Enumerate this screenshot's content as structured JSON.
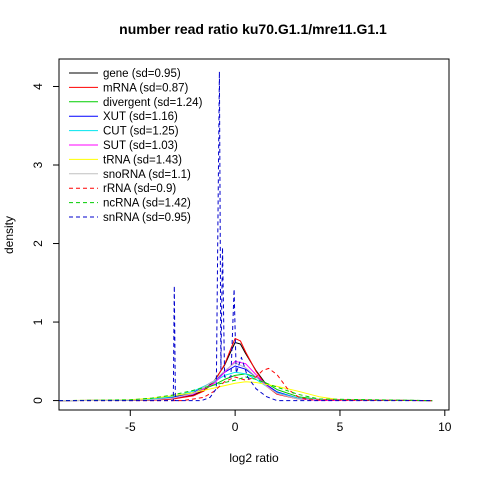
{
  "chart_data": {
    "type": "line",
    "title": "number read ratio ku70.G1.1/mre11.G1.1",
    "xlabel": "log2 ratio",
    "ylabel": "density",
    "xlim": [
      -8.4,
      10.2
    ],
    "ylim": [
      -0.12,
      4.35
    ],
    "x_ticks": [
      -5,
      0,
      5,
      10
    ],
    "y_ticks": [
      0,
      1,
      2,
      3,
      4
    ],
    "grid": false,
    "legend_position": "top-left",
    "series": [
      {
        "name": "gene (sd=0.95)",
        "color": "#000000",
        "dash": "solid",
        "points": [
          [
            -8.4,
            0
          ],
          [
            -4,
            0.005
          ],
          [
            -3,
            0.02
          ],
          [
            -2,
            0.07
          ],
          [
            -1.5,
            0.13
          ],
          [
            -1,
            0.25
          ],
          [
            -0.5,
            0.45
          ],
          [
            -0.25,
            0.6
          ],
          [
            0,
            0.74
          ],
          [
            0.25,
            0.72
          ],
          [
            0.5,
            0.6
          ],
          [
            1,
            0.38
          ],
          [
            1.5,
            0.2
          ],
          [
            2,
            0.1
          ],
          [
            3,
            0.03
          ],
          [
            4,
            0.01
          ],
          [
            9.4,
            0
          ]
        ]
      },
      {
        "name": "mRNA (sd=0.87)",
        "color": "#ff0000",
        "dash": "solid",
        "points": [
          [
            -8.4,
            0
          ],
          [
            -4,
            0.005
          ],
          [
            -3,
            0.02
          ],
          [
            -2,
            0.06
          ],
          [
            -1.5,
            0.12
          ],
          [
            -1,
            0.24
          ],
          [
            -0.5,
            0.46
          ],
          [
            -0.25,
            0.63
          ],
          [
            0,
            0.79
          ],
          [
            0.25,
            0.76
          ],
          [
            0.5,
            0.62
          ],
          [
            1,
            0.37
          ],
          [
            1.5,
            0.18
          ],
          [
            2,
            0.08
          ],
          [
            3,
            0.02
          ],
          [
            4,
            0.005
          ],
          [
            9.4,
            0
          ]
        ]
      },
      {
        "name": "divergent (sd=1.24)",
        "color": "#00cd00",
        "dash": "solid",
        "points": [
          [
            -8.4,
            0
          ],
          [
            -5,
            0.005
          ],
          [
            -4,
            0.02
          ],
          [
            -3,
            0.05
          ],
          [
            -2,
            0.1
          ],
          [
            -1,
            0.2
          ],
          [
            -0.5,
            0.27
          ],
          [
            0,
            0.32
          ],
          [
            0.5,
            0.34
          ],
          [
            1,
            0.3
          ],
          [
            1.5,
            0.22
          ],
          [
            2,
            0.14
          ],
          [
            3,
            0.05
          ],
          [
            4,
            0.015
          ],
          [
            9.4,
            0
          ]
        ]
      },
      {
        "name": "XUT (sd=1.16)",
        "color": "#0000ff",
        "dash": "solid",
        "points": [
          [
            -8.4,
            0
          ],
          [
            -5,
            0.005
          ],
          [
            -4,
            0.015
          ],
          [
            -3,
            0.04
          ],
          [
            -2,
            0.1
          ],
          [
            -1,
            0.25
          ],
          [
            -0.5,
            0.36
          ],
          [
            0,
            0.44
          ],
          [
            0.5,
            0.4
          ],
          [
            1,
            0.3
          ],
          [
            1.5,
            0.2
          ],
          [
            2,
            0.11
          ],
          [
            3,
            0.03
          ],
          [
            4,
            0.01
          ],
          [
            9.4,
            0
          ]
        ]
      },
      {
        "name": "CUT (sd=1.25)",
        "color": "#00e5ee",
        "dash": "solid",
        "points": [
          [
            -8.4,
            0
          ],
          [
            -5,
            0.005
          ],
          [
            -4,
            0.02
          ],
          [
            -3,
            0.05
          ],
          [
            -2,
            0.12
          ],
          [
            -1,
            0.24
          ],
          [
            -0.5,
            0.32
          ],
          [
            0,
            0.36
          ],
          [
            0.5,
            0.34
          ],
          [
            1,
            0.27
          ],
          [
            1.5,
            0.18
          ],
          [
            2,
            0.1
          ],
          [
            3,
            0.03
          ],
          [
            4,
            0.01
          ],
          [
            9.4,
            0
          ]
        ]
      },
      {
        "name": "SUT (sd=1.03)",
        "color": "#ff00ff",
        "dash": "solid",
        "points": [
          [
            -8.4,
            0
          ],
          [
            -4,
            0.008
          ],
          [
            -3,
            0.03
          ],
          [
            -2,
            0.08
          ],
          [
            -1,
            0.22
          ],
          [
            -0.5,
            0.36
          ],
          [
            0,
            0.5
          ],
          [
            0.5,
            0.47
          ],
          [
            1,
            0.33
          ],
          [
            1.5,
            0.19
          ],
          [
            2,
            0.09
          ],
          [
            3,
            0.02
          ],
          [
            4,
            0.005
          ],
          [
            9.4,
            0
          ]
        ]
      },
      {
        "name": "tRNA (sd=1.43)",
        "color": "#ffff00",
        "dash": "solid",
        "points": [
          [
            -8.4,
            0
          ],
          [
            -5,
            0.01
          ],
          [
            -4,
            0.03
          ],
          [
            -3,
            0.06
          ],
          [
            -2,
            0.1
          ],
          [
            -1,
            0.16
          ],
          [
            0,
            0.22
          ],
          [
            0.5,
            0.24
          ],
          [
            1,
            0.23
          ],
          [
            2,
            0.18
          ],
          [
            3,
            0.12
          ],
          [
            4,
            0.05
          ],
          [
            5,
            0.01
          ],
          [
            9.4,
            0
          ]
        ]
      },
      {
        "name": "snoRNA (sd=1.1)",
        "color": "#c0c0c0",
        "dash": "solid",
        "points": [
          [
            -8.4,
            0
          ],
          [
            -4,
            0.008
          ],
          [
            -3,
            0.03
          ],
          [
            -2,
            0.09
          ],
          [
            -1,
            0.25
          ],
          [
            -0.5,
            0.38
          ],
          [
            0,
            0.48
          ],
          [
            0.5,
            0.42
          ],
          [
            1,
            0.3
          ],
          [
            1.5,
            0.18
          ],
          [
            2,
            0.09
          ],
          [
            3,
            0.02
          ],
          [
            9.4,
            0
          ]
        ]
      },
      {
        "name": "rRNA (sd=0.9)",
        "color": "#ff0000",
        "dash": "dashed",
        "points": [
          [
            -8.4,
            0
          ],
          [
            -2.5,
            0
          ],
          [
            -1.5,
            0.04
          ],
          [
            -1,
            0.12
          ],
          [
            -0.5,
            0.24
          ],
          [
            0,
            0.3
          ],
          [
            0.5,
            0.26
          ],
          [
            1,
            0.3
          ],
          [
            1.3,
            0.38
          ],
          [
            1.6,
            0.41
          ],
          [
            2,
            0.33
          ],
          [
            2.5,
            0.15
          ],
          [
            3,
            0.05
          ],
          [
            3.5,
            0.01
          ],
          [
            9.4,
            0
          ]
        ]
      },
      {
        "name": "ncRNA (sd=1.42)",
        "color": "#00cd00",
        "dash": "dashed",
        "points": [
          [
            -8.4,
            0
          ],
          [
            -5,
            0.01
          ],
          [
            -4,
            0.03
          ],
          [
            -3,
            0.07
          ],
          [
            -2,
            0.13
          ],
          [
            -1,
            0.2
          ],
          [
            0,
            0.26
          ],
          [
            0.5,
            0.3
          ],
          [
            1,
            0.27
          ],
          [
            2,
            0.17
          ],
          [
            3,
            0.08
          ],
          [
            4,
            0.02
          ],
          [
            9.4,
            0
          ]
        ]
      },
      {
        "name": "snRNA (sd=0.95)",
        "color": "#0000cd",
        "dash": "dashed",
        "points": [
          [
            -8.4,
            0
          ],
          [
            -3.2,
            0
          ],
          [
            -2.95,
            0
          ],
          [
            -2.9,
            1.46
          ],
          [
            -2.85,
            0
          ],
          [
            -1.6,
            0
          ],
          [
            -1.2,
            0.04
          ],
          [
            -0.9,
            0.15
          ],
          [
            -0.75,
            4.19
          ],
          [
            -0.68,
            0.4
          ],
          [
            -0.6,
            1.95
          ],
          [
            -0.5,
            0.3
          ],
          [
            -0.2,
            0.3
          ],
          [
            -0.05,
            1.42
          ],
          [
            0.05,
            0.35
          ],
          [
            0.3,
            0.55
          ],
          [
            0.6,
            0.3
          ],
          [
            1,
            0.15
          ],
          [
            1.5,
            0.05
          ],
          [
            2,
            0
          ],
          [
            9.4,
            0
          ]
        ]
      }
    ]
  }
}
